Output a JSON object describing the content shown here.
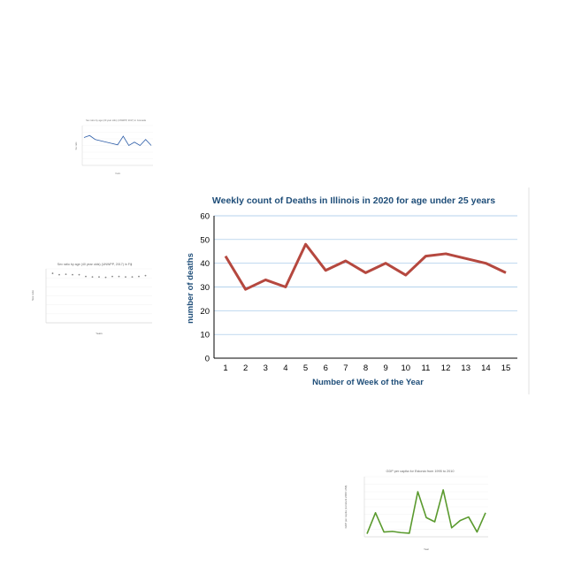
{
  "chart_data": [
    {
      "id": "main",
      "type": "line",
      "title": "Weekly count of Deaths  in Illinois in 2020 for age under 25 years",
      "xlabel": "Number of Week of the Year",
      "ylabel": "number of deaths",
      "x": [
        1,
        2,
        3,
        4,
        5,
        6,
        7,
        8,
        9,
        10,
        11,
        12,
        13,
        14,
        15
      ],
      "y": [
        43,
        29,
        33,
        30,
        48,
        37,
        41,
        36,
        40,
        35,
        43,
        44,
        42,
        40,
        36
      ],
      "ylim": [
        0,
        60
      ],
      "yticks": [
        0,
        10,
        20,
        30,
        40,
        50,
        60
      ],
      "grid": true,
      "color": "#b5483f"
    },
    {
      "id": "top-left",
      "type": "line",
      "title": "Sex ratio by age (20 year olds) (UNWPP, 2017) in Grenada",
      "xlabel": "Years",
      "ylabel": "Sex ratio",
      "y": [
        1.02,
        1.05,
        0.99,
        0.97,
        0.95,
        0.93,
        0.91,
        1.04,
        0.9,
        0.95,
        0.9,
        0.99,
        0.9
      ],
      "ylim": [
        0.6,
        1.2
      ],
      "grid": true,
      "color": "#2e5ea8"
    },
    {
      "id": "middle-left",
      "type": "scatter",
      "title": "Sex ratio by age (40 year olds) (UNWPP, 2017) in Fiji",
      "xlabel": "Years",
      "ylabel": "Sex ratio",
      "x": [
        1950,
        1955,
        1960,
        1965,
        1970,
        1975,
        1980,
        1985,
        1990,
        1995,
        2000,
        2005,
        2010,
        2015,
        2020
      ],
      "y": [
        110,
        107,
        108,
        107,
        107,
        103,
        102,
        102,
        101,
        103,
        103,
        102,
        102,
        103,
        105
      ],
      "ylim": [
        0,
        120
      ],
      "grid": true,
      "color": "#888888"
    },
    {
      "id": "bottom-right",
      "type": "line",
      "title": "GDP per capita for Estonia from 1995 to 2010",
      "xlabel": "Year",
      "ylabel": "GDP per capita (constant 2000 US$)",
      "y": [
        5,
        40,
        8,
        9,
        7,
        6,
        75,
        32,
        25,
        78,
        15,
        27,
        33,
        8,
        40
      ],
      "ylim": [
        0,
        100
      ],
      "grid": true,
      "color": "#5a9a2e"
    }
  ]
}
